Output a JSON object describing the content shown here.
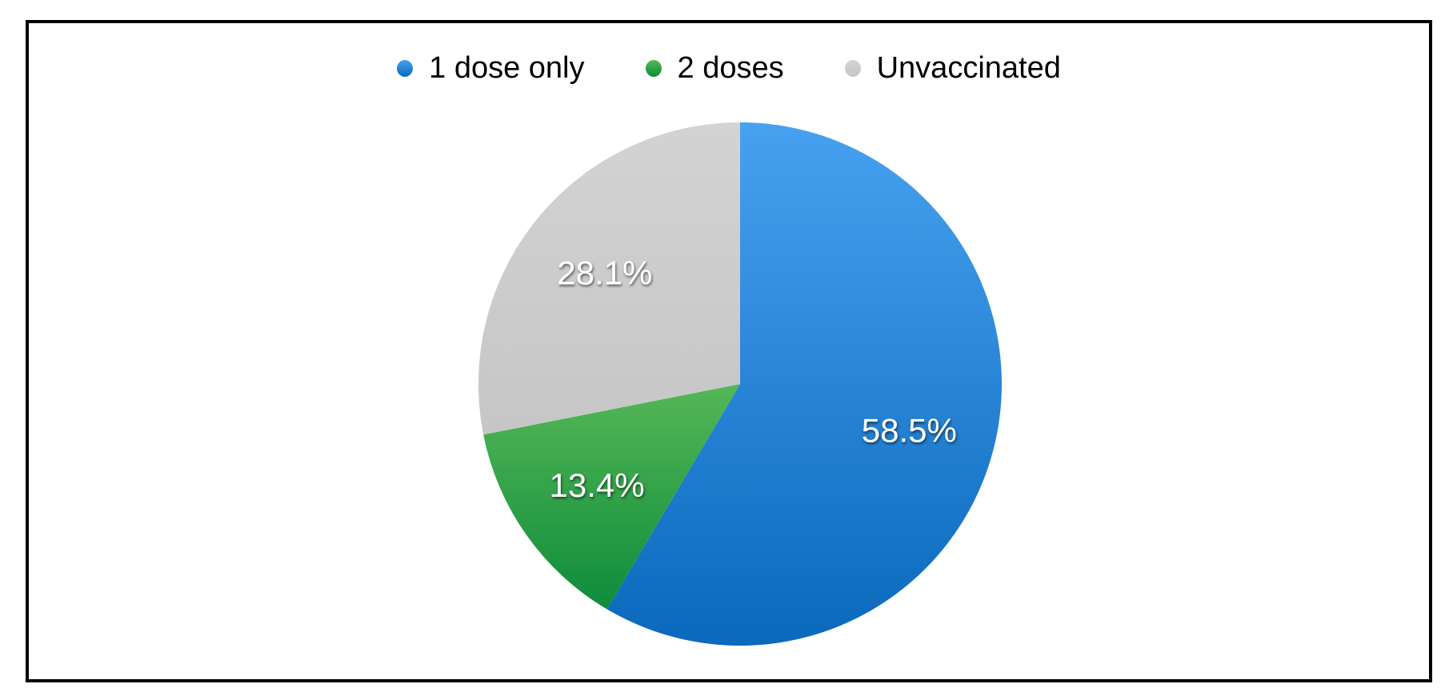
{
  "chart_data": {
    "type": "pie",
    "title": "",
    "categories": [
      "1 dose only",
      "2 doses",
      "Unvaccinated"
    ],
    "values": [
      58.5,
      13.4,
      28.1
    ],
    "data_labels": [
      "58.5%",
      "13.4%",
      "28.1%"
    ],
    "unit": "%",
    "start_angle_deg": 0,
    "direction": "clockwise",
    "legend_position": "top",
    "colors": [
      {
        "name": "blue",
        "top": "#47A1F0",
        "bottom": "#0A69BC"
      },
      {
        "name": "green",
        "top": "#55B757",
        "bottom": "#0E8C3B"
      },
      {
        "name": "gray",
        "top": "#D3D3D3",
        "bottom": "#C6C6C6"
      }
    ]
  }
}
